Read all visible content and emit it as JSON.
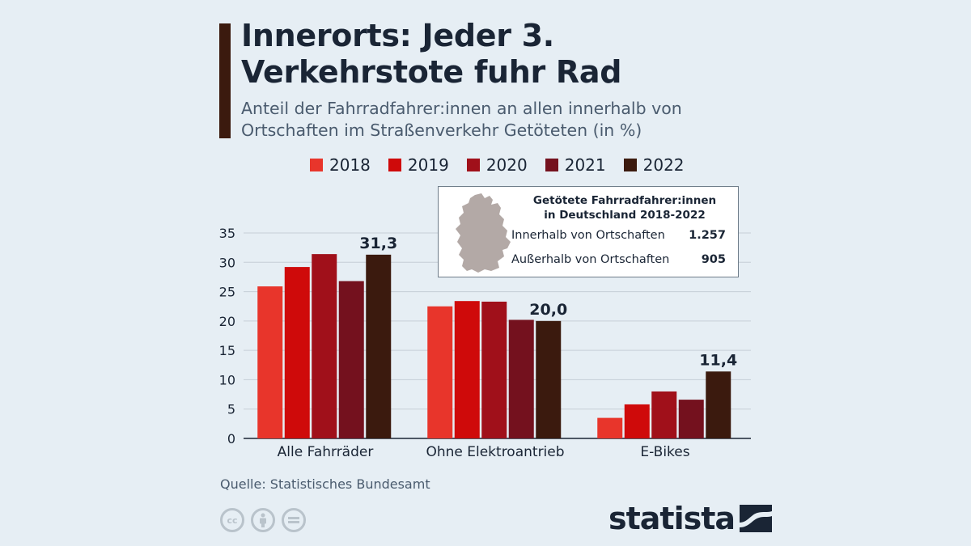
{
  "header": {
    "title": "Innerorts: Jeder 3. Verkehrstote fuhr Rad",
    "subtitle": "Anteil der Fahrradfahrer:innen an allen innerhalb von Ortschaften im Straßenverkehr Getöteten (in %)"
  },
  "legend": [
    {
      "label": "2018",
      "color": "#e8352b"
    },
    {
      "label": "2019",
      "color": "#cf0a0a"
    },
    {
      "label": "2020",
      "color": "#a0101a"
    },
    {
      "label": "2021",
      "color": "#74111e"
    },
    {
      "label": "2022",
      "color": "#3b1a0e"
    }
  ],
  "chart_data": {
    "type": "bar",
    "title": "Innerorts: Jeder 3. Verkehrstote fuhr Rad",
    "ylabel": "",
    "xlabel": "",
    "ylim": [
      0,
      35
    ],
    "yticks": [
      0,
      5,
      10,
      15,
      20,
      25,
      30,
      35
    ],
    "ytick_labels": [
      "0",
      "5",
      "10",
      "15",
      "20",
      "25",
      "30",
      "35"
    ],
    "grid": true,
    "categories": [
      "Alle Fahrräder",
      "Ohne Elektroantrieb",
      "E-Bikes"
    ],
    "series": [
      {
        "name": "2018",
        "color": "#e8352b",
        "values": [
          25.9,
          22.5,
          3.5
        ]
      },
      {
        "name": "2019",
        "color": "#cf0a0a",
        "values": [
          29.2,
          23.4,
          5.8
        ]
      },
      {
        "name": "2020",
        "color": "#a0101a",
        "values": [
          31.4,
          23.3,
          8.0
        ]
      },
      {
        "name": "2021",
        "color": "#74111e",
        "values": [
          26.8,
          20.2,
          6.6
        ]
      },
      {
        "name": "2022",
        "color": "#3b1a0e",
        "values": [
          31.3,
          20.0,
          11.4
        ]
      }
    ],
    "data_labels": [
      "31,3",
      "20,0",
      "11,4"
    ]
  },
  "infobox": {
    "title_line1": "Getötete Fahrradfahrer:innen",
    "title_line2": "in Deutschland 2018-2022",
    "rows": [
      {
        "label": "Innerhalb von Ortschaften",
        "value": "1.257"
      },
      {
        "label": "Außerhalb von Ortschaften",
        "value": "905"
      }
    ]
  },
  "footer": {
    "source": "Quelle: Statistisches Bundesamt",
    "brand": "statista",
    "license_icons": [
      "cc",
      "by",
      "nd"
    ]
  }
}
